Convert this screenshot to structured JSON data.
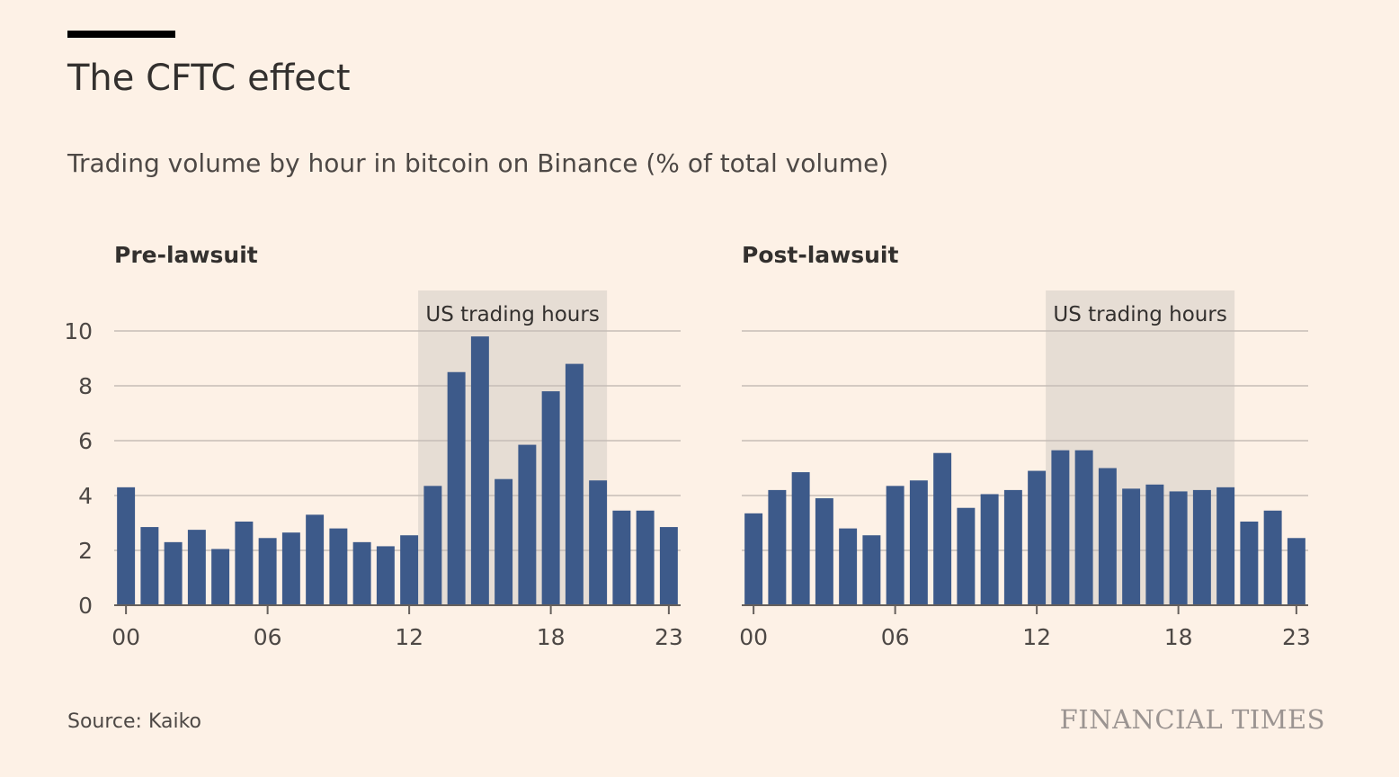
{
  "title": "The CFTC effect",
  "subtitle": "Trading volume by hour in bitcoin on Binance (% of total volume)",
  "source": "Source: Kaiko",
  "logo": "FINANCIAL TIMES",
  "colors": {
    "background": "#fdf1e6",
    "bar": "#3d5a8a",
    "band": "#e6ddd4",
    "gridline": "#c6bdb6"
  },
  "chart_data": [
    {
      "type": "bar",
      "title": "Pre-lawsuit",
      "xlabel": "",
      "ylabel": "",
      "ylim": [
        0,
        10
      ],
      "yticks": [
        0,
        2,
        4,
        6,
        8,
        10
      ],
      "xticks": [
        "00",
        "06",
        "12",
        "18",
        "23"
      ],
      "categories": [
        "00",
        "01",
        "02",
        "03",
        "04",
        "05",
        "06",
        "07",
        "08",
        "09",
        "10",
        "11",
        "12",
        "13",
        "14",
        "15",
        "16",
        "17",
        "18",
        "19",
        "20",
        "21",
        "22",
        "23"
      ],
      "values": [
        4.3,
        2.85,
        2.3,
        2.75,
        2.05,
        3.05,
        2.45,
        2.65,
        3.3,
        2.8,
        2.3,
        2.15,
        2.55,
        4.35,
        8.5,
        9.8,
        4.6,
        5.85,
        7.8,
        8.8,
        4.55,
        3.45,
        3.45,
        2.85
      ],
      "highlight": {
        "label": "US trading hours",
        "from": "13",
        "to": "20"
      },
      "grid": true
    },
    {
      "type": "bar",
      "title": "Post-lawsuit",
      "xlabel": "",
      "ylabel": "",
      "ylim": [
        0,
        10
      ],
      "yticks": [
        0,
        2,
        4,
        6,
        8,
        10
      ],
      "xticks": [
        "00",
        "06",
        "12",
        "18",
        "23"
      ],
      "categories": [
        "00",
        "01",
        "02",
        "03",
        "04",
        "05",
        "06",
        "07",
        "08",
        "09",
        "10",
        "11",
        "12",
        "13",
        "14",
        "15",
        "16",
        "17",
        "18",
        "19",
        "20",
        "21",
        "22",
        "23"
      ],
      "values": [
        3.35,
        4.2,
        4.85,
        3.9,
        2.8,
        2.55,
        4.35,
        4.55,
        5.55,
        3.55,
        4.05,
        4.2,
        4.9,
        5.65,
        5.65,
        5.0,
        4.25,
        4.4,
        4.15,
        4.2,
        4.3,
        3.05,
        3.45,
        2.45
      ],
      "highlight": {
        "label": "US trading hours",
        "from": "13",
        "to": "20"
      },
      "grid": true
    }
  ]
}
